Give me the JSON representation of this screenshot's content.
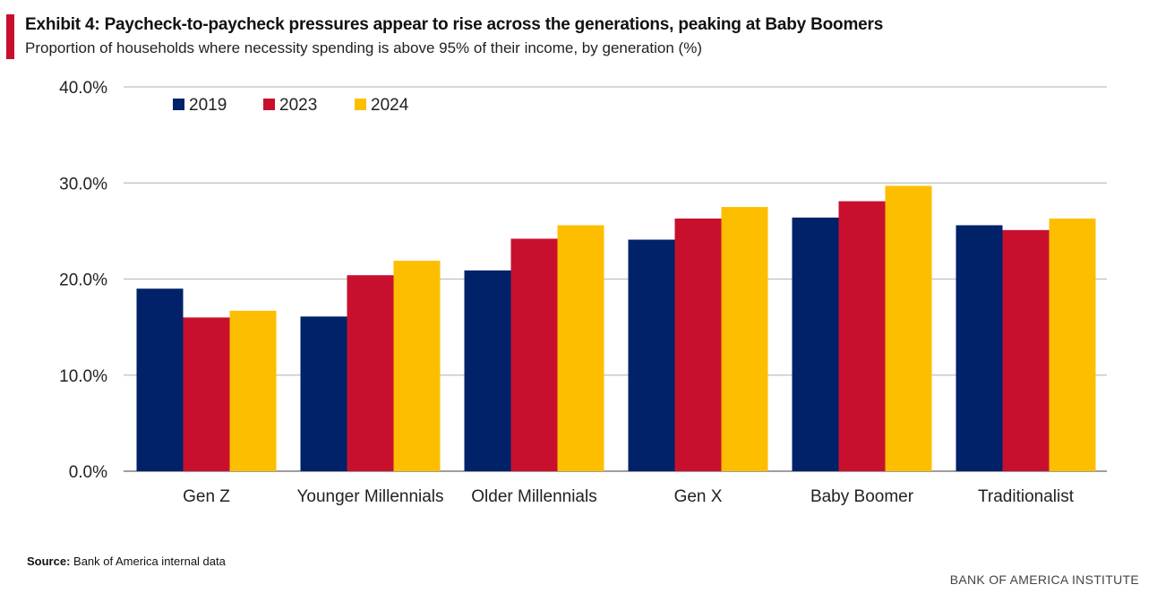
{
  "header": {
    "title": "Exhibit 4: Paycheck-to-paycheck pressures appear to rise across the generations, peaking at Baby Boomers",
    "subtitle": "Proportion of households where necessity spending is above 95% of their income, by generation (%)"
  },
  "footer": {
    "source_label": "Source:",
    "source_text": "Bank of America internal data",
    "brand": "BANK OF AMERICA INSTITUTE"
  },
  "colors": {
    "accent": "#c8102e",
    "series_2019": "#012169",
    "series_2023": "#c8102e",
    "series_2024": "#fdbe00",
    "grid": "#bfbfbf"
  },
  "chart_data": {
    "type": "bar",
    "title": "Exhibit 4: Paycheck-to-paycheck pressures appear to rise across the generations, peaking at Baby Boomers",
    "subtitle": "Proportion of households where necessity spending is above 95% of their income, by generation (%)",
    "xlabel": "",
    "ylabel": "",
    "categories": [
      "Gen Z",
      "Younger Millennials",
      "Older Millennials",
      "Gen X",
      "Baby Boomer",
      "Traditionalist"
    ],
    "series": [
      {
        "name": "2019",
        "color": "#012169",
        "values": [
          19.0,
          16.1,
          20.9,
          24.1,
          26.4,
          25.6
        ]
      },
      {
        "name": "2023",
        "color": "#c8102e",
        "values": [
          16.0,
          20.4,
          24.2,
          26.3,
          28.1,
          25.1
        ]
      },
      {
        "name": "2024",
        "color": "#fdbe00",
        "values": [
          16.7,
          21.9,
          25.6,
          27.5,
          29.7,
          26.3
        ]
      }
    ],
    "ylim": [
      0,
      40
    ],
    "yticks": [
      0,
      10,
      20,
      30,
      40
    ],
    "ytick_labels": [
      "0.0%",
      "10.0%",
      "20.0%",
      "30.0%",
      "40.0%"
    ],
    "grid": true,
    "legend_position": "top-left"
  }
}
